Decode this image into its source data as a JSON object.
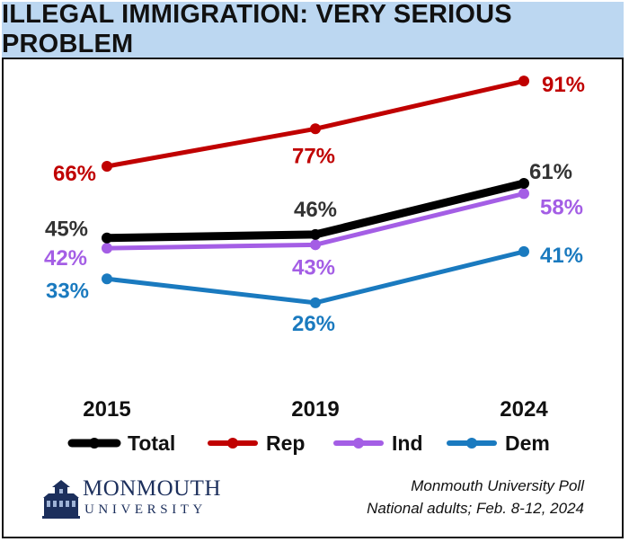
{
  "title": "ILLEGAL IMMIGRATION: VERY SERIOUS PROBLEM",
  "chart_data": {
    "type": "line",
    "categories": [
      "2015",
      "2019",
      "2024"
    ],
    "ylim": [
      20,
      95
    ],
    "series": [
      {
        "name": "Total",
        "color": "#000000",
        "values": [
          45,
          46,
          61
        ],
        "labels": [
          "45%",
          "46%",
          "61%"
        ]
      },
      {
        "name": "Rep",
        "color": "#c00000",
        "values": [
          66,
          77,
          91
        ],
        "labels": [
          "66%",
          "77%",
          "91%"
        ]
      },
      {
        "name": "Ind",
        "color": "#a45ee5",
        "values": [
          42,
          43,
          58
        ],
        "labels": [
          "42%",
          "43%",
          "58%"
        ]
      },
      {
        "name": "Dem",
        "color": "#1a7abf",
        "values": [
          33,
          26,
          41
        ],
        "labels": [
          "33%",
          "26%",
          "41%"
        ]
      }
    ],
    "legend_position": "bottom",
    "grid": false
  },
  "source": {
    "line1": "Monmouth University Poll",
    "line2": "National adults; Feb. 8-12, 2024"
  },
  "logo": {
    "name": "MONMOUTH",
    "sub": "UNIVERSITY"
  }
}
